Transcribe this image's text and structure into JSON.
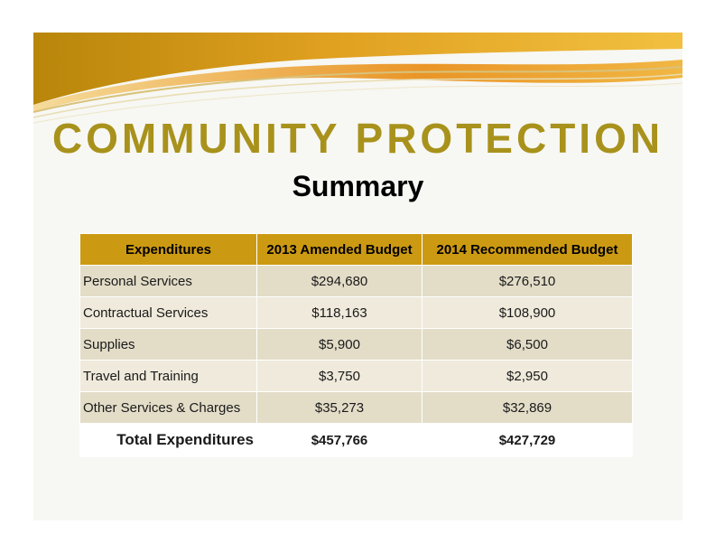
{
  "slide": {
    "title": "COMMUNITY PROTECTION",
    "subtitle": "Summary"
  },
  "colors": {
    "title": "#a8921c",
    "header_fill": "#cc9a12",
    "row_odd": "#e3ddc8",
    "row_even": "#efeadb",
    "banner_gold": "#e0a020",
    "banner_orange": "#e07a10"
  },
  "table": {
    "headers": [
      "Expenditures",
      "2013 Amended Budget",
      "2014 Recommended Budget"
    ],
    "rows": [
      [
        "Personal Services",
        "$294,680",
        "$276,510"
      ],
      [
        "Contractual Services",
        "$118,163",
        "$108,900"
      ],
      [
        "Supplies",
        "$5,900",
        "$6,500"
      ],
      [
        "Travel and Training",
        "$3,750",
        "$2,950"
      ],
      [
        "Other Services & Charges",
        "$35,273",
        "$32,869"
      ]
    ],
    "total": [
      "Total Expenditures",
      "$457,766",
      "$427,729"
    ]
  }
}
